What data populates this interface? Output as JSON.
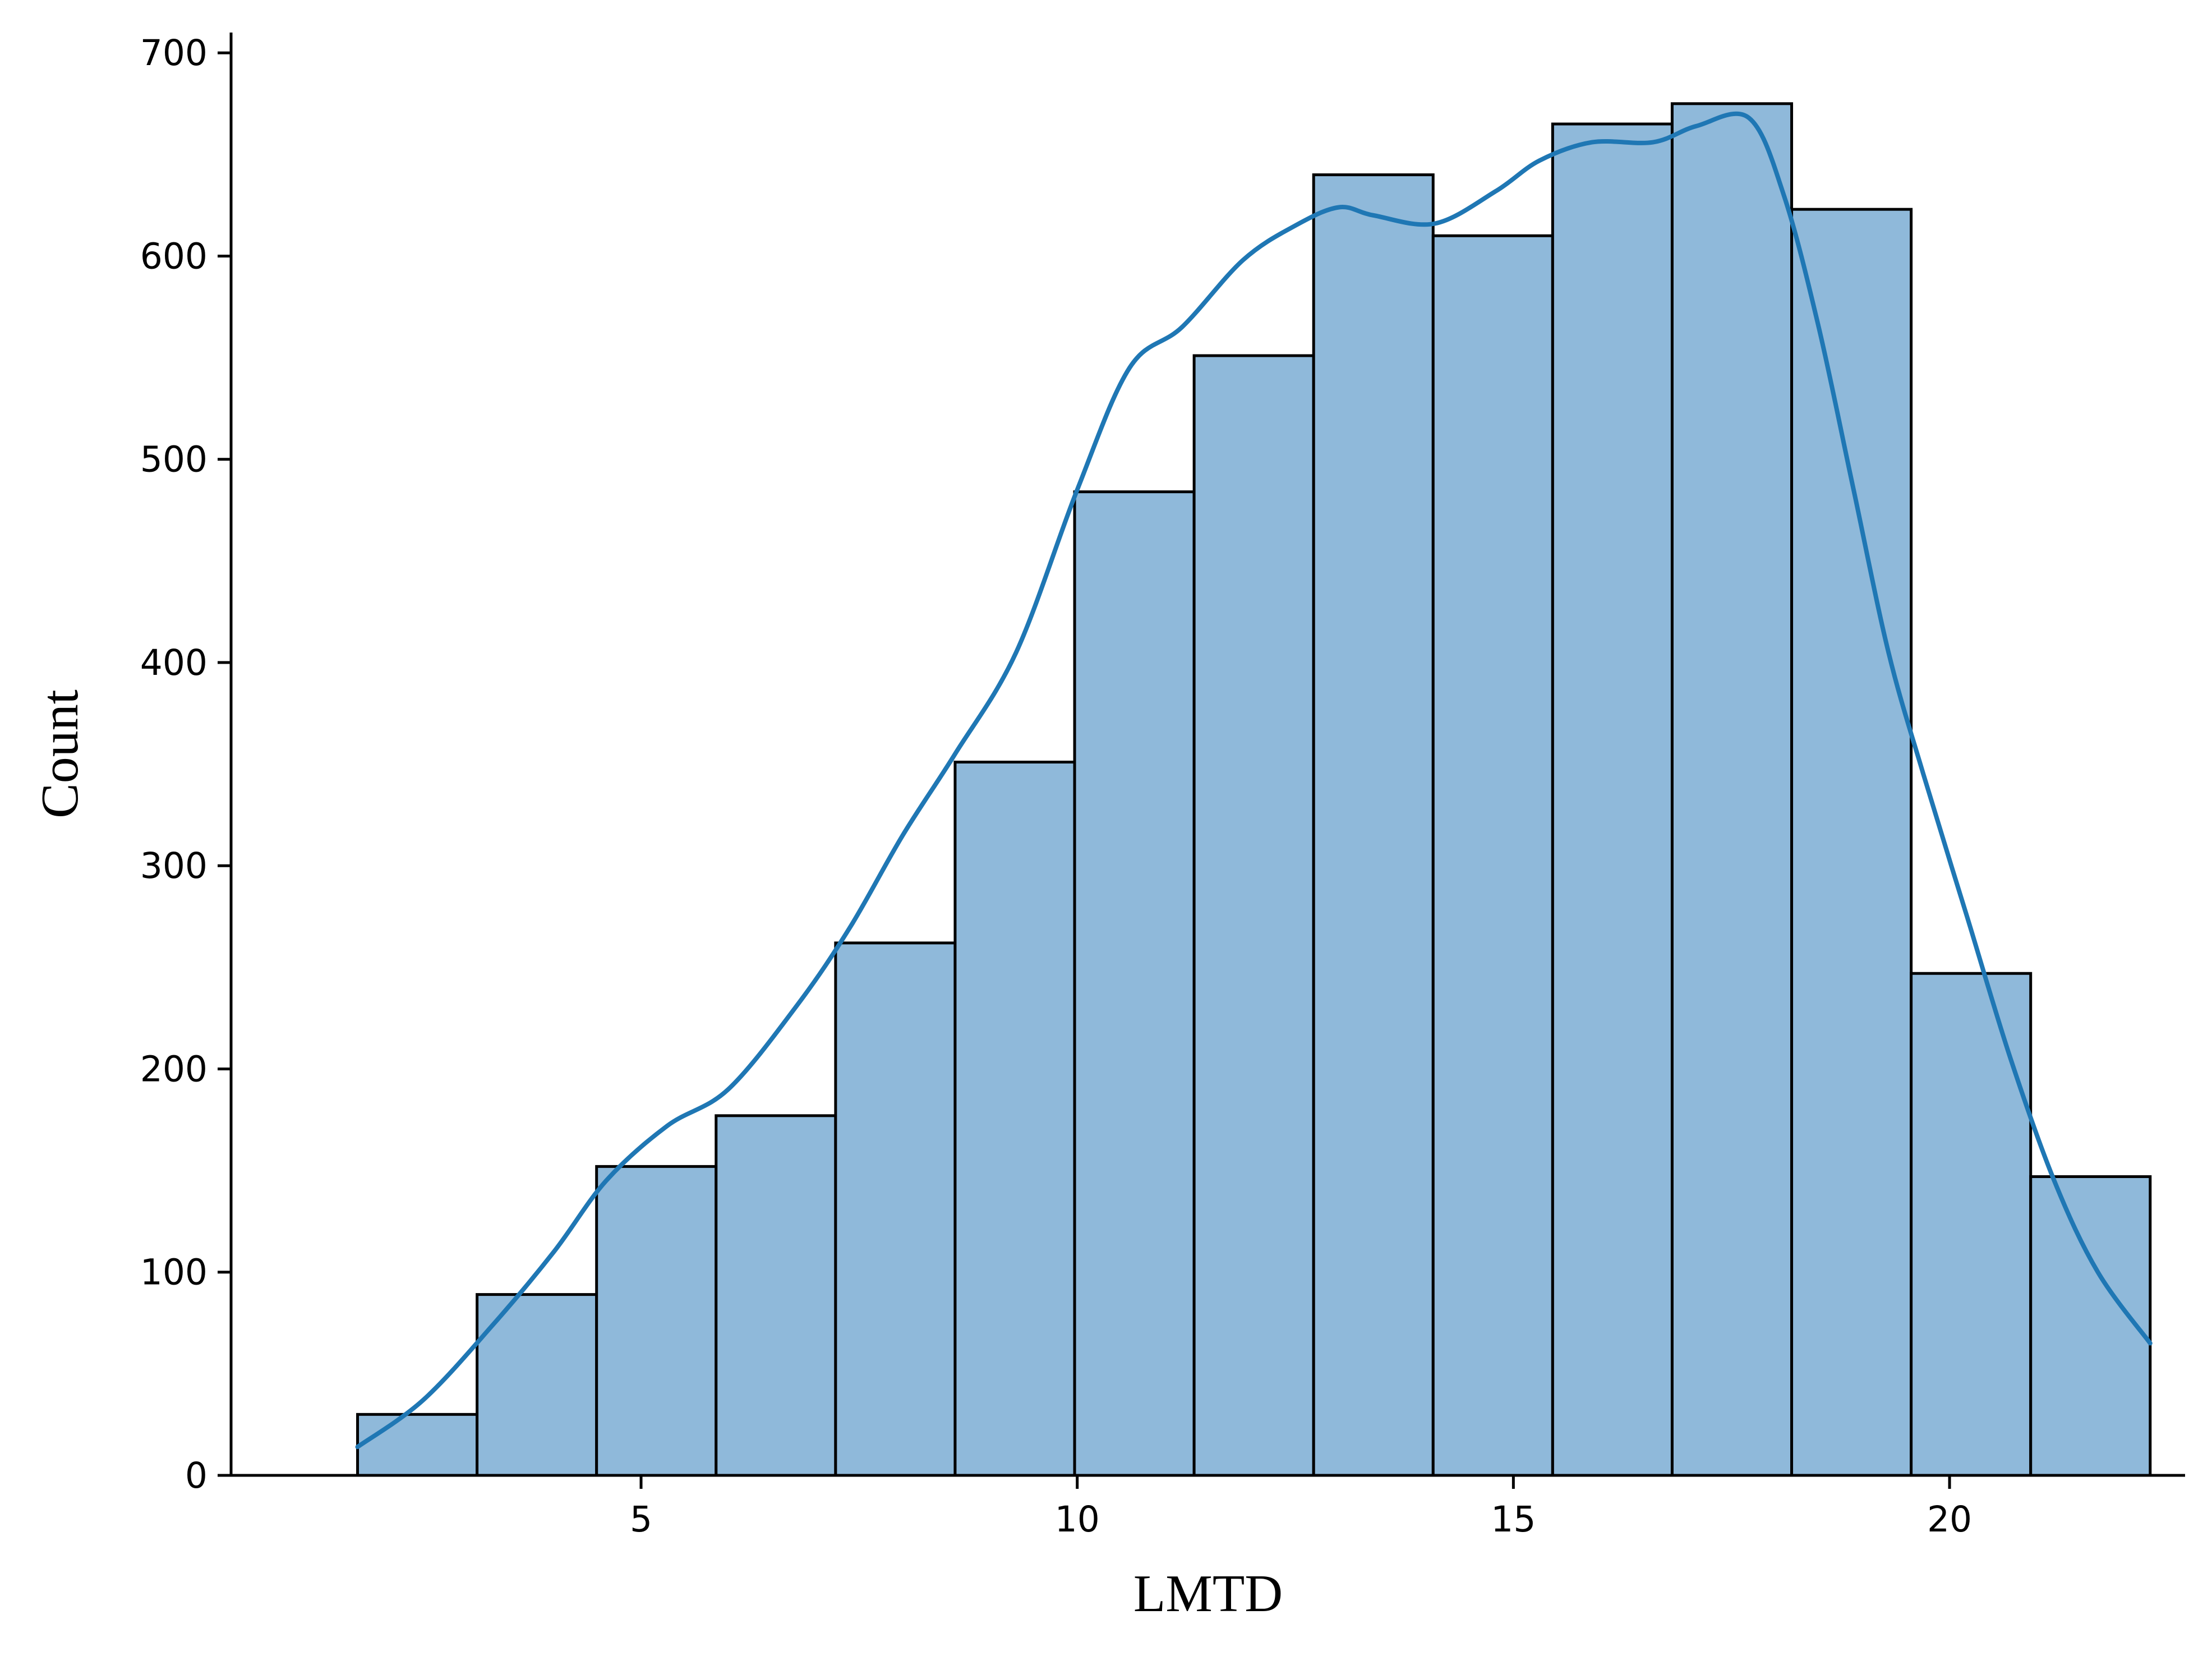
{
  "chart_data": {
    "type": "bar",
    "xlabel": "LMTD",
    "ylabel": "Count",
    "xlim": [
      0.3,
      22.7
    ],
    "ylim": [
      0,
      710
    ],
    "x_ticks": [
      5,
      10,
      15,
      20
    ],
    "y_ticks": [
      0,
      100,
      200,
      300,
      400,
      500,
      600,
      700
    ],
    "grid": false,
    "bins": [
      {
        "x0": 1.75,
        "x1": 3.12,
        "count": 30
      },
      {
        "x0": 3.12,
        "x1": 4.49,
        "count": 89
      },
      {
        "x0": 4.49,
        "x1": 5.86,
        "count": 152
      },
      {
        "x0": 5.86,
        "x1": 7.23,
        "count": 177
      },
      {
        "x0": 7.23,
        "x1": 8.6,
        "count": 262
      },
      {
        "x0": 8.6,
        "x1": 9.97,
        "count": 351
      },
      {
        "x0": 9.97,
        "x1": 11.34,
        "count": 484
      },
      {
        "x0": 11.34,
        "x1": 12.71,
        "count": 551
      },
      {
        "x0": 12.71,
        "x1": 14.08,
        "count": 640
      },
      {
        "x0": 14.08,
        "x1": 15.45,
        "count": 610
      },
      {
        "x0": 15.45,
        "x1": 16.82,
        "count": 665
      },
      {
        "x0": 16.82,
        "x1": 18.19,
        "count": 675
      },
      {
        "x0": 18.19,
        "x1": 19.56,
        "count": 623
      },
      {
        "x0": 19.56,
        "x1": 20.93,
        "count": 247
      },
      {
        "x0": 20.93,
        "x1": 22.3,
        "count": 147
      }
    ],
    "kde": {
      "x": [
        1.75,
        2.5,
        3.3,
        4.0,
        4.6,
        5.3,
        6.0,
        6.8,
        7.4,
        8.0,
        8.6,
        9.3,
        10.0,
        10.6,
        11.2,
        11.9,
        12.5,
        13.0,
        13.4,
        14.1,
        14.8,
        15.3,
        15.9,
        16.6,
        17.1,
        17.7,
        18.1,
        18.5,
        18.9,
        19.3,
        19.7,
        20.2,
        20.7,
        21.2,
        21.7,
        22.3
      ],
      "y": [
        14,
        37,
        74,
        110,
        145,
        172,
        190,
        232,
        270,
        315,
        355,
        405,
        485,
        545,
        565,
        598,
        615,
        624,
        620,
        616,
        632,
        647,
        656,
        656,
        664,
        668,
        630,
        565,
        485,
        405,
        345,
        275,
        205,
        145,
        100,
        65
      ]
    },
    "colors": {
      "bar_fill": "#8fb9da",
      "bar_edge": "#000000",
      "kde_line": "#1f77b4",
      "axis": "#000000"
    }
  }
}
